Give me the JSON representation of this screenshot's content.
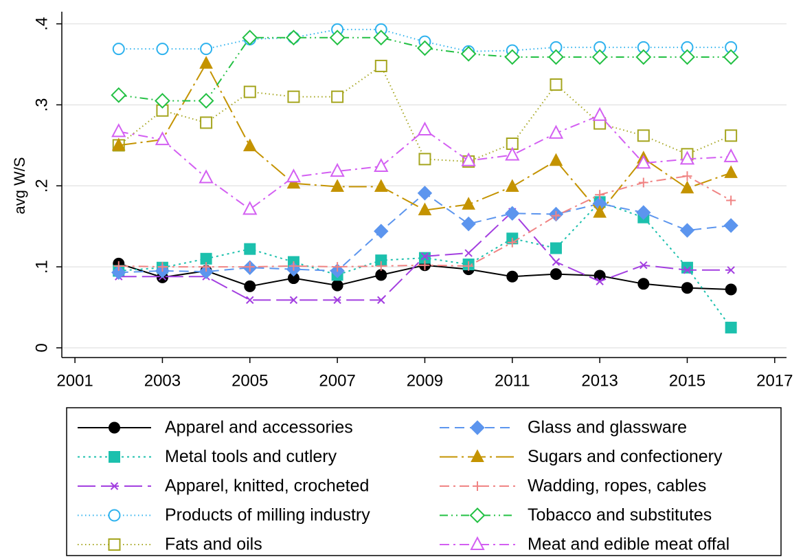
{
  "chart_data": {
    "type": "line",
    "y_label": "avg W/S",
    "x": [
      2002,
      2003,
      2004,
      2005,
      2006,
      2007,
      2008,
      2009,
      2010,
      2011,
      2012,
      2013,
      2014,
      2015,
      2016
    ],
    "xlim": [
      2000.7,
      2017.27
    ],
    "xticks": [
      2001,
      2003,
      2005,
      2007,
      2009,
      2011,
      2013,
      2015,
      2017
    ],
    "ylim": [
      -0.012,
      0.415
    ],
    "yticks": [
      0,
      {
        "value": 0.1,
        "label": ".1"
      },
      {
        "value": 0.2,
        "label": ".2"
      },
      {
        "value": 0.3,
        "label": ".3"
      },
      {
        "value": 0.4,
        "label": ".4"
      }
    ],
    "grid": true,
    "legend": "bottom",
    "series": [
      {
        "name": "Apparel and accessories",
        "color": "#000000",
        "marker": "circle",
        "dash": "solid",
        "values": [
          0.104,
          0.087,
          0.095,
          0.076,
          0.086,
          0.077,
          0.09,
          0.102,
          0.097,
          0.088,
          0.091,
          0.089,
          0.079,
          0.074,
          0.072
        ]
      },
      {
        "name": "Metal tools and cutlery",
        "color": "#1cc0ad",
        "marker": "square",
        "dash": "dot",
        "values": [
          0.095,
          0.099,
          0.11,
          0.122,
          0.106,
          0.09,
          0.108,
          0.111,
          0.103,
          0.135,
          0.123,
          0.18,
          0.161,
          0.099,
          0.025
        ]
      },
      {
        "name": "Apparel, knitted, crocheted",
        "color": "#a33fe0",
        "marker": "x",
        "dash": "longdash",
        "values": [
          0.088,
          0.088,
          0.088,
          0.059,
          0.059,
          0.059,
          0.059,
          0.113,
          0.117,
          0.168,
          0.106,
          0.082,
          0.102,
          0.096,
          0.096
        ]
      },
      {
        "name": "Products of milling industry",
        "color": "#2eb2ee",
        "marker": "circle-open",
        "dash": "finedot",
        "values": [
          0.369,
          0.369,
          0.369,
          0.381,
          0.383,
          0.393,
          0.393,
          0.378,
          0.366,
          0.367,
          0.371,
          0.371,
          0.371,
          0.371,
          0.371
        ]
      },
      {
        "name": "Fats and oils",
        "color": "#a5a51e",
        "marker": "square-open",
        "dash": "finedot",
        "values": [
          0.25,
          0.293,
          0.278,
          0.316,
          0.31,
          0.31,
          0.348,
          0.233,
          0.23,
          0.252,
          0.325,
          0.277,
          0.262,
          0.239,
          0.262
        ]
      },
      {
        "name": "Glass and glassware",
        "color": "#5c95ee",
        "marker": "diamond",
        "dash": "dash",
        "values": [
          0.093,
          0.095,
          0.094,
          0.099,
          0.097,
          0.095,
          0.144,
          0.191,
          0.153,
          0.166,
          0.165,
          0.178,
          0.167,
          0.145,
          0.151
        ]
      },
      {
        "name": "Sugars and confectionery",
        "color": "#c49300",
        "marker": "triangle",
        "dash": "longdashdot",
        "values": [
          0.25,
          0.257,
          0.351,
          0.249,
          0.203,
          0.199,
          0.199,
          0.17,
          0.177,
          0.199,
          0.231,
          0.167,
          0.234,
          0.197,
          0.216
        ]
      },
      {
        "name": "Wadding, ropes, cables",
        "color": "#f08484",
        "marker": "plus",
        "dash": "dashdot",
        "values": [
          0.101,
          0.1,
          0.1,
          0.1,
          0.101,
          0.1,
          0.101,
          0.102,
          0.101,
          0.13,
          0.163,
          0.189,
          0.204,
          0.212,
          0.182
        ]
      },
      {
        "name": "Tobacco and substitutes",
        "color": "#22c043",
        "marker": "diamond-open",
        "dash": "dashdotdot",
        "values": [
          0.312,
          0.305,
          0.305,
          0.383,
          0.383,
          0.383,
          0.383,
          0.37,
          0.363,
          0.359,
          0.359,
          0.359,
          0.359,
          0.359,
          0.359
        ]
      },
      {
        "name": "Meat and edible meat offal",
        "color": "#d35ff2",
        "marker": "triangle-open",
        "dash": "dashdot",
        "values": [
          0.267,
          0.257,
          0.21,
          0.171,
          0.211,
          0.218,
          0.224,
          0.269,
          0.231,
          0.238,
          0.265,
          0.287,
          0.228,
          0.233,
          0.236
        ]
      }
    ]
  }
}
